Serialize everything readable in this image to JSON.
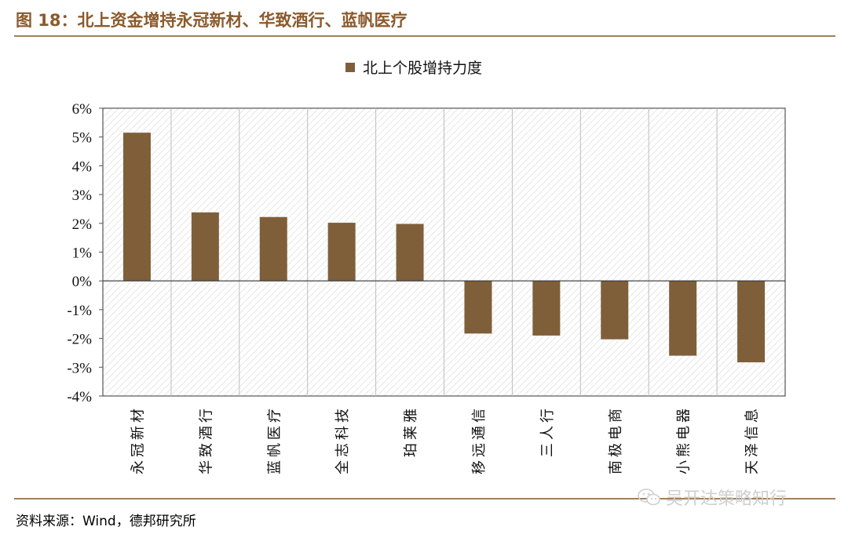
{
  "header": {
    "title": "图 18：北上资金增持永冠新材、华致酒行、蓝帆医疗"
  },
  "footer": {
    "source": "资料来源：Wind，德邦研究所",
    "watermark": "吴开达策略知行",
    "watermark_icon": "wechat-icon"
  },
  "colors": {
    "bar": "#7F5F3A",
    "title": "#8B5A2B",
    "rule": "#A0805A"
  },
  "chart_data": {
    "type": "bar",
    "categories": [
      "永冠新材",
      "华致酒行",
      "蓝帆医疗",
      "全志科技",
      "珀莱雅",
      "移远通信",
      "三人行",
      "南极电商",
      "小熊电器",
      "天泽信息"
    ],
    "series": [
      {
        "name": "北上个股增持力度",
        "values": [
          5.15,
          2.38,
          2.22,
          2.02,
          1.98,
          -1.83,
          -1.9,
          -2.03,
          -2.6,
          -2.83
        ]
      }
    ],
    "unit": "%",
    "ylim": [
      -4,
      6
    ],
    "yticks": [
      "6%",
      "5%",
      "4%",
      "3%",
      "2%",
      "1%",
      "0%",
      "-1%",
      "-2%",
      "-3%",
      "-4%"
    ],
    "legend_position": "top-center",
    "grid": "vertical"
  }
}
